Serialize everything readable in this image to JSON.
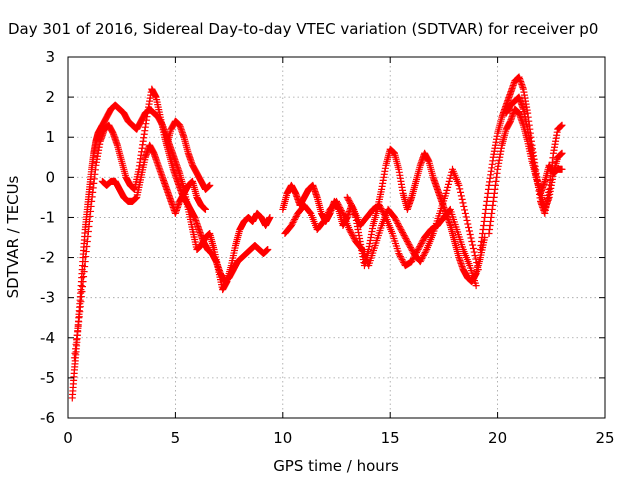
{
  "chart_data": {
    "type": "scatter",
    "title": "Day 301 of 2016, Sidereal Day-to-day VTEC variation (SDTVAR) for receiver p0",
    "xlabel": "GPS time / hours",
    "ylabel": "SDTVAR / TECUs",
    "xlim": [
      0,
      25
    ],
    "ylim": [
      -6,
      3
    ],
    "xticks": [
      "0",
      "5",
      "10",
      "15",
      "20",
      "25"
    ],
    "yticks": [
      "-6",
      "-5",
      "-4",
      "-3",
      "-2",
      "-1",
      "0",
      "1",
      "2",
      "3"
    ],
    "grid": true,
    "marker": "plus",
    "color": "#ff0000",
    "series": [
      {
        "x": [
          0.2,
          0.3,
          0.4,
          0.5,
          0.6,
          0.7,
          0.8,
          0.9,
          1.0,
          1.1,
          1.2,
          1.3,
          1.4,
          1.5,
          1.6,
          1.8,
          2.0,
          2.2,
          2.4,
          2.6,
          2.8,
          3.0,
          3.2,
          3.4,
          3.6,
          3.8,
          4.0,
          4.2,
          4.4,
          4.6,
          4.8,
          5.0,
          5.2,
          5.4,
          5.6,
          5.8,
          6.0,
          6.2,
          6.4,
          6.6,
          6.8,
          7.0,
          7.2,
          7.4,
          7.6,
          7.8,
          8.0,
          8.2,
          8.4,
          8.6,
          8.8,
          9.0,
          9.2,
          9.4
        ],
        "y": [
          -5.5,
          -4.8,
          -4.2,
          -3.5,
          -2.8,
          -2.0,
          -1.3,
          -0.8,
          -0.3,
          0.2,
          0.6,
          0.9,
          1.1,
          1.2,
          1.3,
          1.5,
          1.7,
          1.8,
          1.7,
          1.6,
          1.4,
          1.3,
          1.2,
          1.4,
          1.6,
          1.7,
          1.6,
          1.5,
          1.3,
          1.0,
          0.7,
          0.4,
          0.1,
          -0.3,
          -0.8,
          -1.3,
          -1.8,
          -1.7,
          -1.5,
          -1.4,
          -1.8,
          -2.3,
          -2.8,
          -2.6,
          -2.2,
          -1.7,
          -1.3,
          -1.1,
          -1.0,
          -1.1,
          -0.9,
          -1.0,
          -1.2,
          -1.0
        ]
      },
      {
        "x": [
          0.3,
          0.5,
          0.7,
          0.9,
          1.1,
          1.3,
          1.5,
          1.7,
          1.9,
          2.1,
          2.3,
          2.5,
          2.7,
          2.9,
          3.1,
          3.3,
          3.5,
          3.7,
          3.9,
          4.1,
          4.3,
          4.5,
          4.7,
          4.9,
          5.1,
          5.3,
          5.5,
          5.7,
          5.9,
          6.1,
          6.3,
          6.5,
          6.7,
          6.9,
          7.1,
          7.3,
          7.5,
          7.7,
          7.9,
          8.1,
          8.3,
          8.5,
          8.7,
          8.9,
          9.1,
          9.3
        ],
        "y": [
          -4.5,
          -3.6,
          -2.6,
          -1.6,
          -0.6,
          0.3,
          0.9,
          1.2,
          1.3,
          1.1,
          0.8,
          0.4,
          0.0,
          -0.2,
          -0.3,
          0.2,
          0.9,
          1.6,
          2.2,
          2.0,
          1.5,
          1.0,
          0.6,
          0.2,
          -0.1,
          -0.4,
          -0.6,
          -0.8,
          -1.0,
          -1.3,
          -1.6,
          -1.8,
          -1.9,
          -2.1,
          -2.4,
          -2.6,
          -2.5,
          -2.3,
          -2.1,
          -2.0,
          -1.9,
          -1.8,
          -1.7,
          -1.8,
          -1.9,
          -1.8
        ]
      },
      {
        "x": [
          1.6,
          1.8,
          2.0,
          2.2,
          2.4,
          2.6,
          2.8,
          3.0,
          3.2,
          3.4,
          3.6,
          3.8,
          4.0,
          4.2,
          4.4,
          4.6,
          4.8,
          5.0,
          5.2,
          5.4,
          5.6,
          5.8,
          6.0,
          6.2,
          6.4
        ],
        "y": [
          -0.1,
          -0.2,
          -0.1,
          -0.1,
          -0.3,
          -0.5,
          -0.6,
          -0.6,
          -0.5,
          0.0,
          0.5,
          0.8,
          0.6,
          0.3,
          0.0,
          -0.3,
          -0.6,
          -0.9,
          -0.6,
          -0.4,
          -0.2,
          -0.1,
          -0.5,
          -0.7,
          -0.8
        ]
      },
      {
        "x": [
          4.6,
          4.8,
          5.0,
          5.2,
          5.4,
          5.6,
          5.8,
          6.0,
          6.2,
          6.4,
          6.6
        ],
        "y": [
          0.8,
          1.2,
          1.4,
          1.3,
          1.0,
          0.6,
          0.3,
          0.1,
          -0.1,
          -0.3,
          -0.2
        ]
      },
      {
        "x": [
          10.0,
          10.2,
          10.4,
          10.6,
          10.8,
          11.0,
          11.2,
          11.4,
          11.6,
          11.8,
          12.0,
          12.2,
          12.4,
          12.6,
          12.8,
          13.0,
          13.2,
          13.4,
          13.6,
          13.8,
          14.0,
          14.2,
          14.4,
          14.6,
          14.8,
          15.0,
          15.2,
          15.4,
          15.6,
          15.8,
          16.0,
          16.2,
          16.4,
          16.6,
          16.8,
          17.0,
          17.2,
          17.4,
          17.6,
          17.8,
          18.0,
          18.2,
          18.4,
          18.6,
          18.8,
          19.0,
          19.2,
          19.4
        ],
        "y": [
          -0.8,
          -0.4,
          -0.2,
          -0.4,
          -0.7,
          -0.5,
          -0.3,
          -0.2,
          -0.5,
          -0.9,
          -1.1,
          -0.9,
          -0.6,
          -0.8,
          -1.2,
          -1.0,
          -0.7,
          -1.0,
          -1.6,
          -2.2,
          -1.8,
          -1.2,
          -0.8,
          -0.3,
          0.3,
          0.7,
          0.6,
          0.2,
          -0.4,
          -0.8,
          -0.5,
          -0.1,
          0.3,
          0.6,
          0.4,
          0.0,
          -0.3,
          -0.6,
          -0.9,
          -1.2,
          -1.6,
          -2.0,
          -2.3,
          -2.5,
          -2.6,
          -2.4,
          -2.0,
          -1.5
        ]
      },
      {
        "x": [
          10.1,
          10.4,
          10.7,
          11.0,
          11.3,
          11.6,
          11.9,
          12.2,
          12.5,
          12.8,
          13.1,
          13.4,
          13.7,
          14.0,
          14.3,
          14.6,
          14.9,
          15.2,
          15.5,
          15.8,
          16.1,
          16.4,
          16.7,
          17.0,
          17.3,
          17.6,
          17.9,
          18.2,
          18.5,
          18.8,
          19.1
        ],
        "y": [
          -1.4,
          -1.2,
          -0.9,
          -0.7,
          -0.9,
          -1.3,
          -1.1,
          -0.8,
          -0.6,
          -0.9,
          -1.3,
          -1.6,
          -1.8,
          -2.2,
          -1.7,
          -1.2,
          -0.8,
          -1.0,
          -1.3,
          -1.6,
          -1.9,
          -2.1,
          -1.8,
          -1.4,
          -0.9,
          -0.4,
          0.2,
          -0.2,
          -0.9,
          -1.6,
          -2.3
        ]
      },
      {
        "x": [
          13.0,
          13.3,
          13.6,
          13.9,
          14.2,
          14.5,
          14.8,
          15.1,
          15.4,
          15.7,
          16.0,
          16.3,
          16.6,
          16.9,
          17.2,
          17.5,
          17.8,
          18.1,
          18.4,
          18.7,
          19.0
        ],
        "y": [
          -0.5,
          -0.8,
          -1.2,
          -1.0,
          -0.8,
          -0.7,
          -1.0,
          -1.4,
          -1.9,
          -2.2,
          -2.1,
          -1.8,
          -1.5,
          -1.3,
          -1.2,
          -1.0,
          -0.8,
          -1.3,
          -1.8,
          -2.2,
          -2.7
        ]
      },
      {
        "x": [
          19.2,
          19.4,
          19.6,
          19.8,
          20.0,
          20.2,
          20.4,
          20.6,
          20.8,
          21.0,
          21.2,
          21.4,
          21.6,
          21.8,
          22.0,
          22.2,
          22.4,
          22.6,
          22.8,
          23.0
        ],
        "y": [
          -1.8,
          -1.0,
          -0.2,
          0.5,
          1.1,
          1.5,
          1.8,
          2.1,
          2.4,
          2.5,
          2.2,
          1.6,
          0.8,
          0.1,
          -0.6,
          -0.9,
          -0.3,
          0.6,
          1.2,
          1.3
        ]
      },
      {
        "x": [
          19.6,
          19.8,
          20.0,
          20.2,
          20.4,
          20.6,
          20.8,
          21.0,
          21.2,
          21.4,
          21.6,
          21.8,
          22.0,
          22.2,
          22.4,
          22.6,
          22.8,
          23.0
        ],
        "y": [
          -1.4,
          -0.6,
          0.2,
          0.8,
          1.2,
          1.4,
          1.7,
          1.6,
          1.3,
          0.9,
          0.4,
          0.0,
          -0.4,
          -0.8,
          -0.5,
          0.1,
          0.5,
          0.6
        ]
      },
      {
        "x": [
          20.4,
          20.6,
          20.8,
          21.0,
          21.2,
          21.4,
          21.6,
          21.8,
          22.0,
          22.2,
          22.4,
          22.6,
          22.8,
          23.0
        ],
        "y": [
          1.6,
          1.8,
          1.9,
          2.0,
          1.7,
          1.2,
          0.6,
          0.0,
          -0.4,
          -0.1,
          0.3,
          0.1,
          0.2,
          0.2
        ]
      }
    ]
  }
}
